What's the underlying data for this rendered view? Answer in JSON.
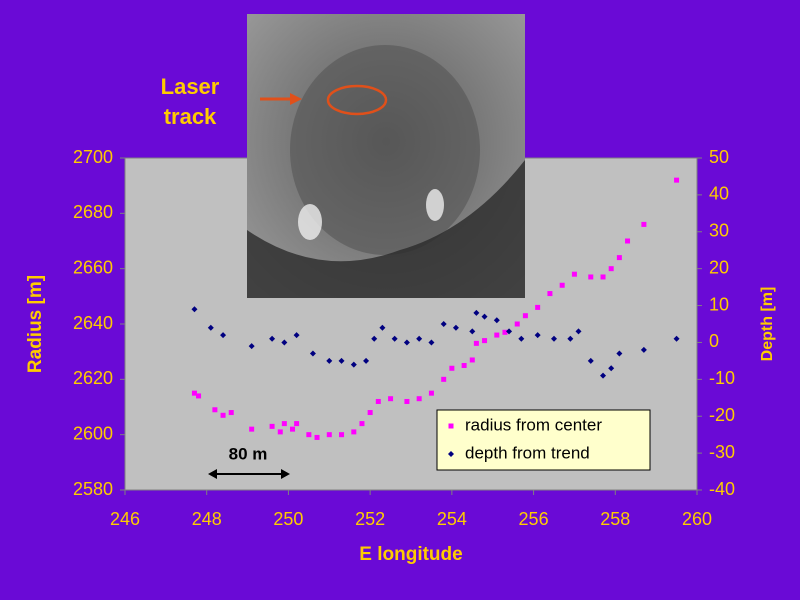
{
  "chart_data": {
    "type": "scatter",
    "xlabel": "E longitude",
    "ylabel": "Radius [m]",
    "y2label": "Depth [m]",
    "annotations": [
      "Laser",
      "track",
      "80 m"
    ],
    "xlim": [
      246,
      260
    ],
    "xticks": [
      246,
      248,
      250,
      252,
      254,
      256,
      258,
      260
    ],
    "ylim": [
      2580,
      2700
    ],
    "yticks": [
      2580,
      2600,
      2620,
      2640,
      2660,
      2680,
      2700
    ],
    "y2lim": [
      -40,
      50
    ],
    "y2ticks": [
      -40,
      -30,
      -20,
      -10,
      0,
      10,
      20,
      30,
      40,
      50
    ],
    "legend": "lower right",
    "series": [
      {
        "name": "radius from center",
        "color": "#ff00ff",
        "marker": "square",
        "x": [
          247.7,
          247.8,
          248.2,
          248.4,
          248.6,
          249.1,
          249.6,
          249.8,
          249.9,
          250.1,
          250.2,
          250.5,
          250.7,
          251,
          251.3,
          251.6,
          251.8,
          252,
          252.2,
          252.5,
          252.9,
          253.2,
          253.5,
          253.8,
          254,
          254.3,
          254.5,
          254.6,
          254.8,
          255.1,
          255.3,
          255.6,
          255.8,
          256.1,
          256.4,
          256.7,
          257,
          257.4,
          257.7,
          257.9,
          258.1,
          258.3,
          258.7,
          259.5
        ],
        "values": [
          2615,
          2614,
          2609,
          2607,
          2608,
          2602,
          2603,
          2601,
          2604,
          2602,
          2604,
          2600,
          2599,
          2600,
          2600,
          2601,
          2604,
          2608,
          2612,
          2613,
          2612,
          2613,
          2615,
          2620,
          2624,
          2625,
          2627,
          2633,
          2634,
          2636,
          2637,
          2640,
          2643,
          2646,
          2651,
          2654,
          2658,
          2657,
          2657,
          2660,
          2664,
          2670,
          2676,
          2692
        ]
      },
      {
        "name": "depth from trend",
        "color": "#000080",
        "marker": "diamond",
        "axis": "y2",
        "x": [
          247.7,
          248.1,
          248.4,
          249.1,
          249.6,
          249.9,
          250.2,
          250.6,
          251,
          251.3,
          251.6,
          251.9,
          252.1,
          252.3,
          252.6,
          252.9,
          253.2,
          253.5,
          253.8,
          254.1,
          254.5,
          254.6,
          254.8,
          255.1,
          255.4,
          255.7,
          256.1,
          256.5,
          256.9,
          257.1,
          257.4,
          257.7,
          257.9,
          258.1,
          258.7,
          259.5
        ],
        "values": [
          9,
          4,
          2,
          -1,
          1,
          0,
          2,
          -3,
          -5,
          -5,
          -6,
          -5,
          1,
          4,
          1,
          0,
          1,
          0,
          5,
          4,
          3,
          8,
          7,
          6,
          3,
          1,
          2,
          1,
          1,
          3,
          -5,
          -9,
          -7,
          -3,
          -2,
          1
        ]
      }
    ]
  }
}
